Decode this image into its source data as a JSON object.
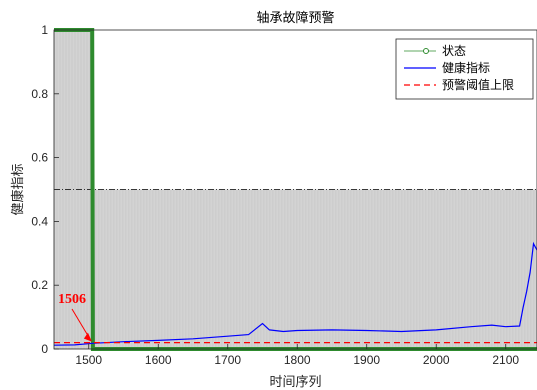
{
  "chart_data": {
    "type": "line",
    "title": "轴承故障预警",
    "xlabel": "时间序列",
    "ylabel": "健康指标",
    "xlim": [
      1450,
      2145
    ],
    "ylim": [
      0,
      1
    ],
    "xticks": [
      1500,
      1600,
      1700,
      1800,
      1900,
      2000,
      2100
    ],
    "yticks": [
      0,
      0.2,
      0.4,
      0.6,
      0.8,
      1
    ],
    "ytick_labels": [
      "0",
      "0.2",
      "0.4",
      "0.6",
      "0.8",
      "1"
    ],
    "grid": false,
    "legend_position": "top-right",
    "series": [
      {
        "name": "状态",
        "color": "#2e8b2e",
        "style": "line-with-circle-markers",
        "x": [
          1450,
          1505,
          1506,
          2145
        ],
        "y": [
          1,
          1,
          0,
          0
        ]
      },
      {
        "name": "健康指标",
        "color": "#0000ff",
        "style": "solid",
        "x": [
          1450,
          1480,
          1506,
          1550,
          1600,
          1650,
          1700,
          1730,
          1750,
          1760,
          1780,
          1800,
          1850,
          1900,
          1950,
          2000,
          2050,
          2080,
          2100,
          2120,
          2125,
          2130,
          2135,
          2140,
          2145
        ],
        "y": [
          0.012,
          0.013,
          0.018,
          0.023,
          0.027,
          0.032,
          0.04,
          0.045,
          0.08,
          0.06,
          0.055,
          0.058,
          0.06,
          0.058,
          0.055,
          0.06,
          0.07,
          0.075,
          0.07,
          0.072,
          0.13,
          0.18,
          0.24,
          0.33,
          0.31
        ]
      },
      {
        "name": "预警阈值上限",
        "color": "#ff0000",
        "style": "dashed",
        "x": [
          1450,
          2145
        ],
        "y": [
          0.02,
          0.02
        ]
      }
    ],
    "shaded_regions": [
      {
        "x": [
          1450,
          1505
        ],
        "y": [
          0,
          1
        ],
        "color": "#d3d3d3"
      },
      {
        "x": [
          1506,
          2145
        ],
        "y": [
          0,
          0.5
        ],
        "color": "#d3d3d3"
      }
    ],
    "reference_lines": [
      {
        "axis": "y",
        "value": 0.5,
        "from_x": 1450,
        "to_x": 2145,
        "style": "dashdot",
        "color": "#000000"
      }
    ],
    "annotation": {
      "text": "1506",
      "x": 1506,
      "y": 0.02,
      "color": "#ff0000"
    }
  }
}
